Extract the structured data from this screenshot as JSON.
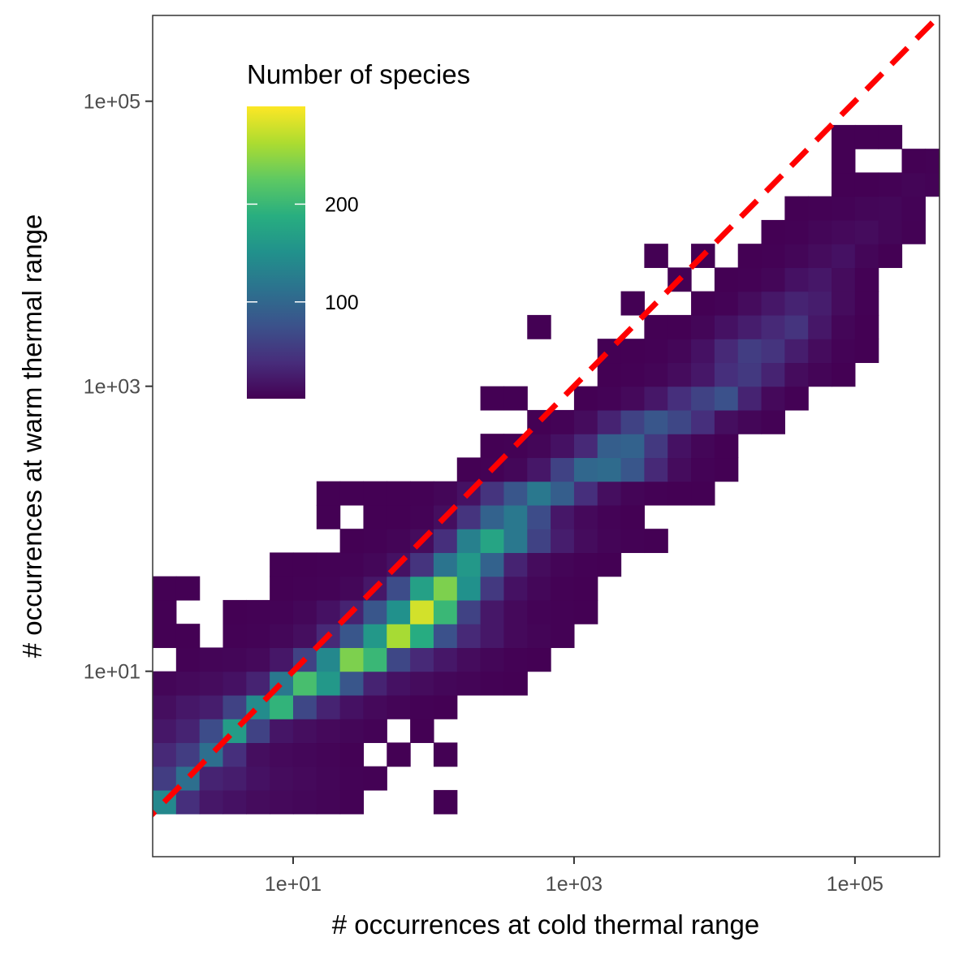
{
  "chart_data": {
    "type": "heatmap",
    "xlabel": "# occurrences at cold thermal range",
    "ylabel": "# occurrences at warm thermal range",
    "x_scale": "log10",
    "y_scale": "log10",
    "xlim": [
      1.0,
      400000
    ],
    "ylim": [
      0.5,
      400000
    ],
    "x_ticks": [
      {
        "value": 10,
        "label": "1e+01"
      },
      {
        "value": 1000,
        "label": "1e+03"
      },
      {
        "value": 100000,
        "label": "1e+05"
      }
    ],
    "y_ticks": [
      {
        "value": 10,
        "label": "1e+01"
      },
      {
        "value": 1000,
        "label": "1e+03"
      },
      {
        "value": 100000,
        "label": "1e+05"
      }
    ],
    "bins_per_decade": 6,
    "reference_line": {
      "type": "identity",
      "style": "dashed",
      "color": "#ff0000"
    },
    "legend": {
      "title": "Number of species",
      "position": "top-left inside",
      "ticks": [
        {
          "value": 100,
          "label": "100"
        },
        {
          "value": 200,
          "label": "200"
        }
      ],
      "range": [
        1,
        300
      ],
      "palette": "viridis"
    },
    "cells_note": "cells: [x_bin_index, y_bin_index, count]; bin index i spans 10^(i/6) to 10^((i+1)/6)",
    "cells": [
      [
        0,
        0,
        140
      ],
      [
        1,
        0,
        40
      ],
      [
        2,
        0,
        20
      ],
      [
        3,
        0,
        15
      ],
      [
        4,
        0,
        10
      ],
      [
        5,
        0,
        8
      ],
      [
        6,
        0,
        6
      ],
      [
        7,
        0,
        4
      ],
      [
        8,
        0,
        2
      ],
      [
        12,
        0,
        1
      ],
      [
        0,
        1,
        55
      ],
      [
        1,
        1,
        110
      ],
      [
        2,
        1,
        30
      ],
      [
        3,
        1,
        25
      ],
      [
        4,
        1,
        15
      ],
      [
        5,
        1,
        10
      ],
      [
        6,
        1,
        8
      ],
      [
        7,
        1,
        5
      ],
      [
        8,
        1,
        3
      ],
      [
        9,
        1,
        2
      ],
      [
        0,
        2,
        35
      ],
      [
        1,
        2,
        55
      ],
      [
        2,
        2,
        110
      ],
      [
        3,
        2,
        40
      ],
      [
        4,
        2,
        12
      ],
      [
        5,
        2,
        8
      ],
      [
        6,
        2,
        6
      ],
      [
        7,
        2,
        4
      ],
      [
        8,
        2,
        2
      ],
      [
        10,
        2,
        1
      ],
      [
        12,
        2,
        1
      ],
      [
        0,
        3,
        20
      ],
      [
        1,
        3,
        30
      ],
      [
        2,
        3,
        70
      ],
      [
        3,
        3,
        165
      ],
      [
        4,
        3,
        60
      ],
      [
        5,
        3,
        18
      ],
      [
        6,
        3,
        12
      ],
      [
        7,
        3,
        8
      ],
      [
        8,
        3,
        5
      ],
      [
        9,
        3,
        3
      ],
      [
        11,
        3,
        1
      ],
      [
        0,
        4,
        12
      ],
      [
        1,
        4,
        20
      ],
      [
        2,
        4,
        25
      ],
      [
        3,
        4,
        60
      ],
      [
        4,
        4,
        145
      ],
      [
        5,
        4,
        195
      ],
      [
        6,
        4,
        65
      ],
      [
        7,
        4,
        30
      ],
      [
        8,
        4,
        15
      ],
      [
        9,
        4,
        8
      ],
      [
        10,
        4,
        4
      ],
      [
        11,
        4,
        2
      ],
      [
        12,
        4,
        1
      ],
      [
        0,
        5,
        5
      ],
      [
        1,
        5,
        8
      ],
      [
        2,
        5,
        10
      ],
      [
        3,
        5,
        15
      ],
      [
        4,
        5,
        30
      ],
      [
        5,
        5,
        120
      ],
      [
        6,
        5,
        210
      ],
      [
        7,
        5,
        160
      ],
      [
        8,
        5,
        80
      ],
      [
        9,
        5,
        30
      ],
      [
        10,
        5,
        15
      ],
      [
        11,
        5,
        10
      ],
      [
        12,
        5,
        6
      ],
      [
        13,
        5,
        4
      ],
      [
        14,
        5,
        2
      ],
      [
        15,
        5,
        1
      ],
      [
        1,
        6,
        2
      ],
      [
        2,
        6,
        4
      ],
      [
        3,
        6,
        5
      ],
      [
        4,
        6,
        8
      ],
      [
        5,
        6,
        20
      ],
      [
        6,
        6,
        60
      ],
      [
        7,
        6,
        140
      ],
      [
        8,
        6,
        240
      ],
      [
        9,
        6,
        200
      ],
      [
        10,
        6,
        65
      ],
      [
        11,
        6,
        35
      ],
      [
        12,
        6,
        20
      ],
      [
        13,
        6,
        10
      ],
      [
        14,
        6,
        5
      ],
      [
        15,
        6,
        2
      ],
      [
        16,
        6,
        1
      ],
      [
        0,
        7,
        1
      ],
      [
        1,
        7,
        1
      ],
      [
        3,
        7,
        2
      ],
      [
        4,
        7,
        3
      ],
      [
        5,
        7,
        6
      ],
      [
        6,
        7,
        12
      ],
      [
        7,
        7,
        35
      ],
      [
        8,
        7,
        80
      ],
      [
        9,
        7,
        160
      ],
      [
        10,
        7,
        260
      ],
      [
        11,
        7,
        185
      ],
      [
        12,
        7,
        75
      ],
      [
        13,
        7,
        35
      ],
      [
        14,
        7,
        20
      ],
      [
        15,
        7,
        8
      ],
      [
        16,
        7,
        4
      ],
      [
        17,
        7,
        2
      ],
      [
        0,
        8,
        1
      ],
      [
        3,
        8,
        1
      ],
      [
        4,
        8,
        2
      ],
      [
        5,
        8,
        3
      ],
      [
        6,
        8,
        6
      ],
      [
        7,
        8,
        15
      ],
      [
        8,
        8,
        30
      ],
      [
        9,
        8,
        80
      ],
      [
        10,
        8,
        150
      ],
      [
        11,
        8,
        280
      ],
      [
        12,
        8,
        200
      ],
      [
        13,
        8,
        60
      ],
      [
        14,
        8,
        20
      ],
      [
        15,
        8,
        8
      ],
      [
        16,
        8,
        3
      ],
      [
        17,
        8,
        2
      ],
      [
        18,
        8,
        1
      ],
      [
        0,
        9,
        1
      ],
      [
        1,
        9,
        1
      ],
      [
        5,
        9,
        1
      ],
      [
        6,
        9,
        2
      ],
      [
        7,
        9,
        3
      ],
      [
        8,
        9,
        6
      ],
      [
        9,
        9,
        20
      ],
      [
        10,
        9,
        70
      ],
      [
        11,
        9,
        170
      ],
      [
        12,
        9,
        240
      ],
      [
        13,
        9,
        150
      ],
      [
        14,
        9,
        50
      ],
      [
        15,
        9,
        15
      ],
      [
        16,
        9,
        6
      ],
      [
        17,
        9,
        2
      ],
      [
        18,
        9,
        1
      ],
      [
        5,
        10,
        1
      ],
      [
        6,
        10,
        1
      ],
      [
        7,
        10,
        2
      ],
      [
        8,
        10,
        3
      ],
      [
        9,
        10,
        6
      ],
      [
        10,
        10,
        15
      ],
      [
        11,
        10,
        45
      ],
      [
        12,
        10,
        115
      ],
      [
        13,
        10,
        160
      ],
      [
        14,
        10,
        95
      ],
      [
        15,
        10,
        30
      ],
      [
        16,
        10,
        10
      ],
      [
        17,
        10,
        4
      ],
      [
        18,
        10,
        2
      ],
      [
        19,
        10,
        1
      ],
      [
        8,
        11,
        1
      ],
      [
        9,
        11,
        2
      ],
      [
        10,
        11,
        4
      ],
      [
        11,
        11,
        10
      ],
      [
        12,
        11,
        40
      ],
      [
        13,
        11,
        130
      ],
      [
        14,
        11,
        175
      ],
      [
        15,
        11,
        120
      ],
      [
        16,
        11,
        60
      ],
      [
        17,
        11,
        25
      ],
      [
        18,
        11,
        10
      ],
      [
        19,
        11,
        4
      ],
      [
        20,
        11,
        2
      ],
      [
        21,
        11,
        1
      ],
      [
        7,
        12,
        1
      ],
      [
        9,
        12,
        1
      ],
      [
        10,
        12,
        1
      ],
      [
        11,
        12,
        3
      ],
      [
        12,
        12,
        12
      ],
      [
        13,
        12,
        45
      ],
      [
        14,
        12,
        95
      ],
      [
        15,
        12,
        120
      ],
      [
        16,
        12,
        70
      ],
      [
        17,
        12,
        20
      ],
      [
        18,
        12,
        8
      ],
      [
        19,
        12,
        3
      ],
      [
        20,
        12,
        1
      ],
      [
        7,
        13,
        1
      ],
      [
        8,
        13,
        1
      ],
      [
        9,
        13,
        1
      ],
      [
        10,
        13,
        1
      ],
      [
        11,
        13,
        2
      ],
      [
        12,
        13,
        5
      ],
      [
        13,
        13,
        15
      ],
      [
        14,
        13,
        45
      ],
      [
        15,
        13,
        80
      ],
      [
        16,
        13,
        120
      ],
      [
        17,
        13,
        90
      ],
      [
        18,
        13,
        40
      ],
      [
        19,
        13,
        12
      ],
      [
        20,
        13,
        4
      ],
      [
        21,
        13,
        2
      ],
      [
        22,
        13,
        1
      ],
      [
        23,
        13,
        1
      ],
      [
        13,
        14,
        1
      ],
      [
        14,
        14,
        2
      ],
      [
        15,
        14,
        6
      ],
      [
        16,
        14,
        20
      ],
      [
        17,
        14,
        60
      ],
      [
        18,
        14,
        100
      ],
      [
        19,
        14,
        105
      ],
      [
        20,
        14,
        80
      ],
      [
        21,
        14,
        35
      ],
      [
        22,
        14,
        10
      ],
      [
        23,
        14,
        3
      ],
      [
        24,
        14,
        1
      ],
      [
        14,
        15,
        1
      ],
      [
        15,
        15,
        2
      ],
      [
        16,
        15,
        5
      ],
      [
        17,
        15,
        15
      ],
      [
        18,
        15,
        35
      ],
      [
        19,
        15,
        90
      ],
      [
        20,
        15,
        95
      ],
      [
        21,
        15,
        50
      ],
      [
        22,
        15,
        15
      ],
      [
        23,
        15,
        5
      ],
      [
        24,
        15,
        1
      ],
      [
        16,
        16,
        1
      ],
      [
        17,
        16,
        3
      ],
      [
        18,
        16,
        10
      ],
      [
        19,
        16,
        30
      ],
      [
        20,
        16,
        60
      ],
      [
        21,
        16,
        80
      ],
      [
        22,
        16,
        65
      ],
      [
        23,
        16,
        40
      ],
      [
        24,
        16,
        12
      ],
      [
        25,
        16,
        5
      ],
      [
        26,
        16,
        2
      ],
      [
        14,
        17,
        1
      ],
      [
        15,
        17,
        1
      ],
      [
        18,
        17,
        1
      ],
      [
        19,
        17,
        3
      ],
      [
        20,
        17,
        8
      ],
      [
        21,
        17,
        20
      ],
      [
        22,
        17,
        40
      ],
      [
        23,
        17,
        60
      ],
      [
        24,
        17,
        75
      ],
      [
        25,
        17,
        30
      ],
      [
        26,
        17,
        8
      ],
      [
        27,
        17,
        2
      ],
      [
        19,
        18,
        1
      ],
      [
        20,
        18,
        2
      ],
      [
        21,
        18,
        4
      ],
      [
        22,
        18,
        10
      ],
      [
        23,
        18,
        20
      ],
      [
        24,
        18,
        40
      ],
      [
        25,
        18,
        50
      ],
      [
        26,
        18,
        30
      ],
      [
        27,
        18,
        10
      ],
      [
        28,
        18,
        4
      ],
      [
        29,
        18,
        1
      ],
      [
        19,
        19,
        1
      ],
      [
        20,
        19,
        1
      ],
      [
        21,
        19,
        2
      ],
      [
        22,
        19,
        5
      ],
      [
        23,
        19,
        15
      ],
      [
        24,
        19,
        35
      ],
      [
        25,
        19,
        55
      ],
      [
        26,
        19,
        45
      ],
      [
        27,
        19,
        25
      ],
      [
        28,
        19,
        10
      ],
      [
        29,
        19,
        3
      ],
      [
        30,
        19,
        1
      ],
      [
        16,
        20,
        1
      ],
      [
        21,
        20,
        1
      ],
      [
        22,
        20,
        1
      ],
      [
        23,
        20,
        5
      ],
      [
        24,
        20,
        15
      ],
      [
        25,
        20,
        25
      ],
      [
        26,
        20,
        35
      ],
      [
        27,
        20,
        45
      ],
      [
        28,
        20,
        20
      ],
      [
        29,
        20,
        5
      ],
      [
        30,
        20,
        1
      ],
      [
        20,
        21,
        1
      ],
      [
        23,
        21,
        1
      ],
      [
        24,
        21,
        3
      ],
      [
        25,
        21,
        10
      ],
      [
        26,
        21,
        20
      ],
      [
        27,
        21,
        30
      ],
      [
        28,
        21,
        25
      ],
      [
        29,
        21,
        10
      ],
      [
        30,
        21,
        2
      ],
      [
        22,
        22,
        1
      ],
      [
        24,
        22,
        1
      ],
      [
        25,
        22,
        2
      ],
      [
        26,
        22,
        5
      ],
      [
        27,
        22,
        15
      ],
      [
        28,
        22,
        20
      ],
      [
        29,
        22,
        10
      ],
      [
        30,
        22,
        2
      ],
      [
        21,
        23,
        1
      ],
      [
        23,
        23,
        1
      ],
      [
        25,
        23,
        1
      ],
      [
        26,
        23,
        2
      ],
      [
        27,
        23,
        5
      ],
      [
        28,
        23,
        10
      ],
      [
        29,
        23,
        15
      ],
      [
        30,
        23,
        5
      ],
      [
        31,
        23,
        1
      ],
      [
        26,
        24,
        1
      ],
      [
        27,
        24,
        2
      ],
      [
        28,
        24,
        5
      ],
      [
        29,
        24,
        8
      ],
      [
        30,
        24,
        10
      ],
      [
        31,
        24,
        5
      ],
      [
        32,
        24,
        2
      ],
      [
        27,
        25,
        1
      ],
      [
        28,
        25,
        2
      ],
      [
        29,
        25,
        3
      ],
      [
        30,
        25,
        5
      ],
      [
        31,
        25,
        6
      ],
      [
        32,
        25,
        3
      ],
      [
        29,
        26,
        1
      ],
      [
        30,
        26,
        1
      ],
      [
        31,
        26,
        2
      ],
      [
        32,
        26,
        4
      ],
      [
        33,
        26,
        3
      ],
      [
        34,
        26,
        1
      ],
      [
        35,
        26,
        1
      ],
      [
        29,
        27,
        1
      ],
      [
        32,
        27,
        1
      ],
      [
        33,
        27,
        2
      ],
      [
        34,
        27,
        3
      ],
      [
        35,
        27,
        2
      ],
      [
        29,
        28,
        1
      ],
      [
        30,
        28,
        1
      ],
      [
        31,
        28,
        1
      ],
      [
        34,
        28,
        1
      ]
    ]
  }
}
